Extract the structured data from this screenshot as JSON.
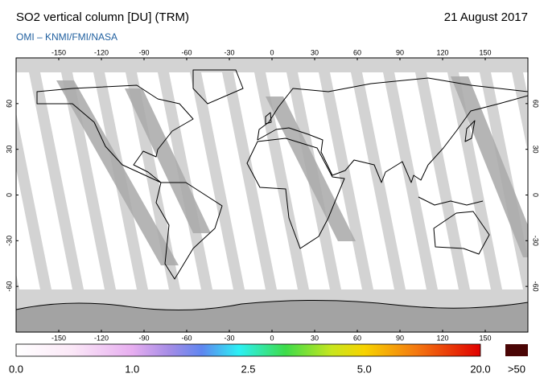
{
  "header": {
    "title": "SO2 vertical column [DU] (TRM)",
    "source": "OMI  –  KNMI/FMI/NASA",
    "date": "21 August 2017"
  },
  "map": {
    "lon_ticks": [
      -150,
      -120,
      -90,
      -60,
      -30,
      0,
      30,
      60,
      90,
      120,
      150
    ],
    "lat_ticks": [
      60,
      30,
      0,
      -30,
      -60
    ]
  },
  "colorbar": {
    "labels": [
      "0.0",
      "1.0",
      "2.5",
      "5.0",
      "20.0"
    ],
    "overflow_label": ">50"
  }
}
